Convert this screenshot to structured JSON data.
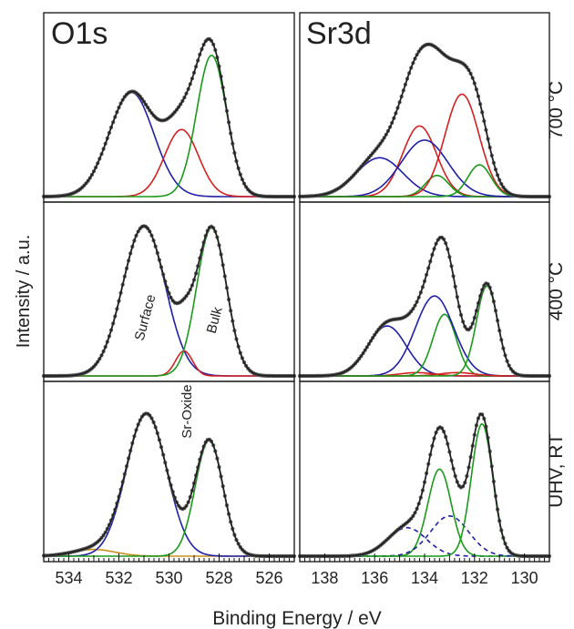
{
  "chart_data": {
    "type": "line",
    "ylabel": "Intensity / a.u.",
    "xlabel": "Binding Energy / eV",
    "grid": false,
    "columns": [
      {
        "title": "O1s",
        "xlim": [
          535,
          525
        ],
        "ticks": [
          534,
          532,
          530,
          528,
          526
        ]
      },
      {
        "title": "Sr3d",
        "xlim": [
          139,
          129
        ],
        "ticks": [
          138,
          136,
          134,
          132,
          130
        ]
      }
    ],
    "rows": [
      "700 °C",
      "400 °C",
      "UHV, RT"
    ],
    "annotations": [
      {
        "text": "Surface",
        "color": "#1f1fa8"
      },
      {
        "text": "Bulk",
        "color": "#1a9a1a"
      },
      {
        "text": "Sr-Oxide",
        "color": "#cc2222"
      }
    ],
    "colors": {
      "data": "#555555",
      "envelope": "#222222",
      "blue": "#1f1fa8",
      "red": "#d42020",
      "green": "#1a9a1a",
      "orange": "#c8901a"
    },
    "panels": [
      {
        "row": 0,
        "col": 0,
        "background": 0.0,
        "components": [
          {
            "color": "blue",
            "center": 531.5,
            "amplitude": 0.59,
            "fwhm": 2.1
          },
          {
            "color": "red",
            "center": 529.5,
            "amplitude": 0.38,
            "fwhm": 1.6
          },
          {
            "color": "green",
            "center": 528.3,
            "amplitude": 0.8,
            "fwhm": 1.4
          }
        ]
      },
      {
        "row": 0,
        "col": 1,
        "background": 0.0,
        "components": [
          {
            "color": "blue",
            "center": 135.8,
            "amplitude": 0.22,
            "fwhm": 2.2
          },
          {
            "color": "red",
            "center": 134.2,
            "amplitude": 0.4,
            "fwhm": 1.6
          },
          {
            "color": "green",
            "center": 133.5,
            "amplitude": 0.12,
            "fwhm": 1.1
          },
          {
            "color": "blue",
            "center": 134.0,
            "amplitude": 0.32,
            "fwhm": 2.2
          },
          {
            "color": "red",
            "center": 132.5,
            "amplitude": 0.58,
            "fwhm": 1.6
          },
          {
            "color": "green",
            "center": 131.8,
            "amplitude": 0.18,
            "fwhm": 1.1
          }
        ]
      },
      {
        "row": 1,
        "col": 0,
        "background": 0.0,
        "components": [
          {
            "color": "blue",
            "center": 531.0,
            "amplitude": 0.9,
            "fwhm": 2.0
          },
          {
            "color": "red",
            "center": 529.4,
            "amplitude": 0.15,
            "fwhm": 0.8
          },
          {
            "color": "green",
            "center": 528.3,
            "amplitude": 0.89,
            "fwhm": 1.4
          }
        ]
      },
      {
        "row": 1,
        "col": 1,
        "background": 0.0,
        "components": [
          {
            "color": "blue",
            "center": 135.5,
            "amplitude": 0.3,
            "fwhm": 1.8
          },
          {
            "color": "red",
            "center": 134.3,
            "amplitude": 0.02,
            "fwhm": 1.6
          },
          {
            "color": "green",
            "center": 133.2,
            "amplitude": 0.37,
            "fwhm": 1.1
          },
          {
            "color": "blue",
            "center": 133.6,
            "amplitude": 0.48,
            "fwhm": 1.8
          },
          {
            "color": "red",
            "center": 132.7,
            "amplitude": 0.02,
            "fwhm": 1.6
          },
          {
            "color": "green",
            "center": 131.5,
            "amplitude": 0.54,
            "fwhm": 1.0
          }
        ]
      },
      {
        "row": 2,
        "col": 0,
        "background": 0.0,
        "components": [
          {
            "color": "orange",
            "center": 533.0,
            "amplitude": 0.04,
            "fwhm": 2.0
          },
          {
            "color": "blue",
            "center": 530.9,
            "amplitude": 0.85,
            "fwhm": 1.9
          },
          {
            "color": "green",
            "center": 528.4,
            "amplitude": 0.69,
            "fwhm": 1.3
          }
        ]
      },
      {
        "row": 2,
        "col": 1,
        "background": 0.0,
        "components": [
          {
            "color": "blue",
            "center": 134.7,
            "amplitude": 0.17,
            "fwhm": 1.8,
            "dashed": true
          },
          {
            "color": "green",
            "center": 133.4,
            "amplitude": 0.52,
            "fwhm": 1.1
          },
          {
            "color": "blue",
            "center": 133.0,
            "amplitude": 0.24,
            "fwhm": 1.8,
            "dashed": true
          },
          {
            "color": "green",
            "center": 131.7,
            "amplitude": 0.79,
            "fwhm": 1.0
          }
        ]
      }
    ]
  }
}
